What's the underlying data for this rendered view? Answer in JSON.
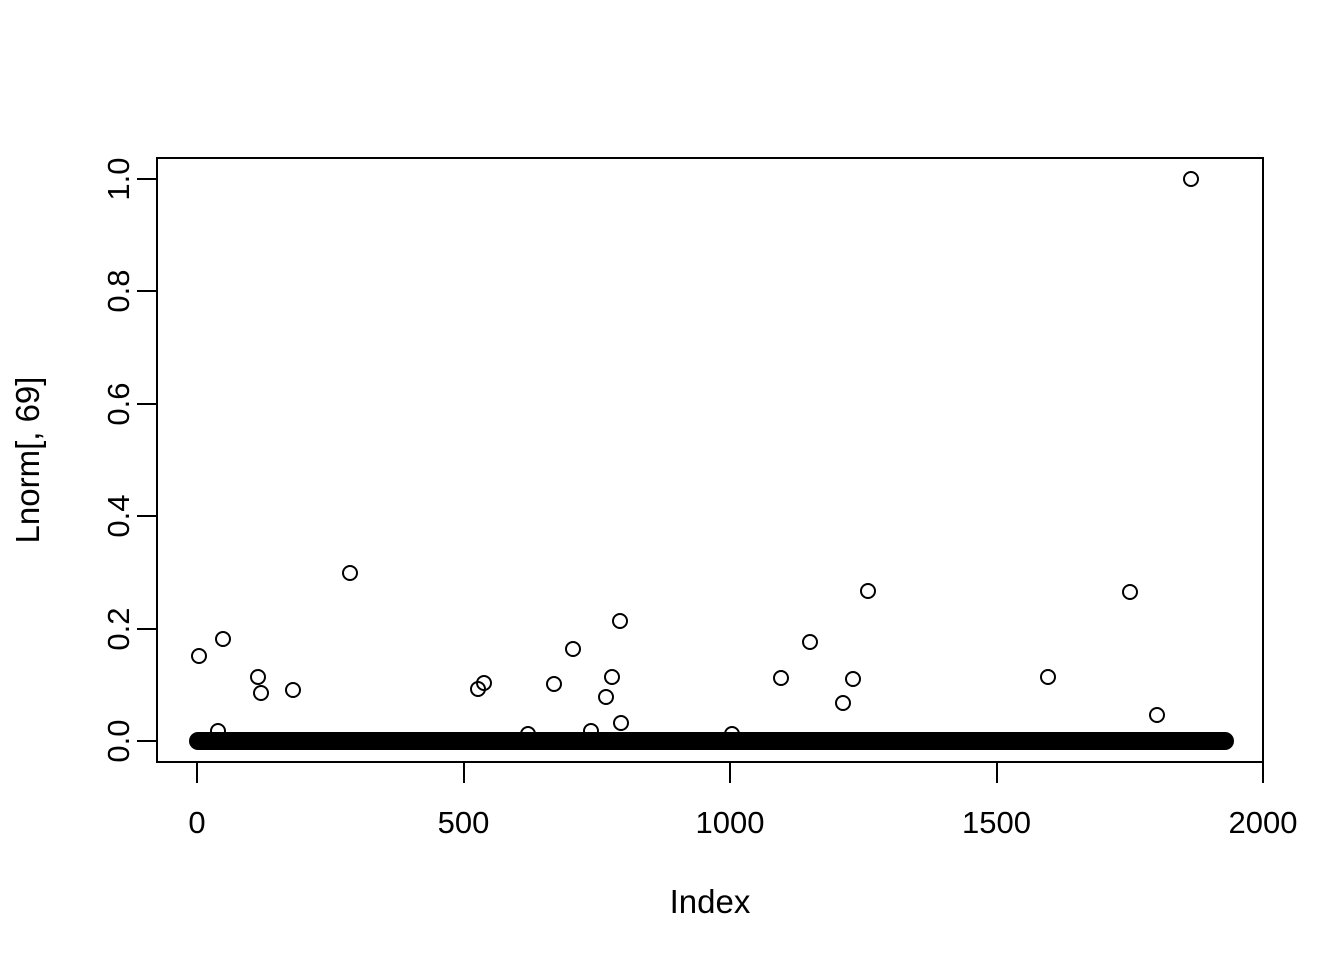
{
  "figure": {
    "background_color": "#ffffff",
    "foreground_color": "#000000"
  },
  "chart_data": {
    "type": "scatter",
    "title": "",
    "xlabel": "Index",
    "ylabel": "Lnorm[, 69]",
    "xlim": [
      -77,
      2007
    ],
    "ylim": [
      -0.04,
      1.04
    ],
    "x_ticks": [
      0,
      500,
      1000,
      1500,
      2000
    ],
    "x_tick_labels": [
      "0",
      "500",
      "1000",
      "1500",
      "2000"
    ],
    "y_ticks": [
      0.0,
      0.2,
      0.4,
      0.6,
      0.8,
      1.0
    ],
    "y_tick_labels": [
      "0.0",
      "0.2",
      "0.4",
      "0.6",
      "0.8",
      "1.0"
    ],
    "grid": false,
    "legend": null,
    "marker": "open-circle",
    "marker_color": "#000000",
    "points": [
      [
        3,
        0.151
      ],
      [
        40,
        0.017
      ],
      [
        48,
        0.182
      ],
      [
        115,
        0.113
      ],
      [
        120,
        0.086
      ],
      [
        181,
        0.091
      ],
      [
        287,
        0.299
      ],
      [
        527,
        0.092
      ],
      [
        538,
        0.104
      ],
      [
        621,
        0.013
      ],
      [
        669,
        0.102
      ],
      [
        705,
        0.164
      ],
      [
        739,
        0.018
      ],
      [
        768,
        0.078
      ],
      [
        778,
        0.114
      ],
      [
        794,
        0.213
      ],
      [
        795,
        0.032
      ],
      [
        1003,
        0.012
      ],
      [
        1096,
        0.112
      ],
      [
        1151,
        0.177
      ],
      [
        1212,
        0.067
      ],
      [
        1231,
        0.11
      ],
      [
        1258,
        0.267
      ],
      [
        1597,
        0.114
      ],
      [
        1751,
        0.265
      ],
      [
        1801,
        0.046
      ],
      [
        1865,
        1.0
      ]
    ],
    "zero_band": {
      "x_start": 0,
      "x_end": 1930,
      "y": 0,
      "note": "approximately 1900 densely overlapping points at values near 0 forming a solid black band"
    }
  }
}
